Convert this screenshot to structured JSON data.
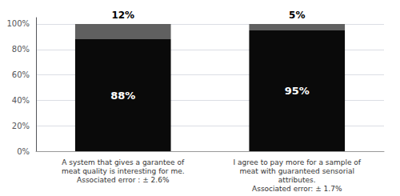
{
  "chart_data": {
    "type": "bar",
    "stacked": true,
    "data_labels": true,
    "grid": true,
    "categories": [
      "A system that gives a garantee of\nmeat quality is interesting for me.\nAssociated error : ± 2.6%",
      "I agree to pay more for a sample of\nmeat with guaranteed sensorial\nattributes.\nAssociated error: ± 1.7%"
    ],
    "series": [
      {
        "color": "#0a0a0a",
        "values": [
          88,
          95
        ],
        "value_labels": [
          "88%",
          "95%"
        ]
      },
      {
        "color": "#606060",
        "values": [
          12,
          5
        ],
        "value_labels": [
          "12%",
          "5%"
        ]
      }
    ],
    "ylim": [
      0,
      105
    ],
    "yticks": [
      {
        "value": 0,
        "label": "0%"
      },
      {
        "value": 20,
        "label": "20%"
      },
      {
        "value": 40,
        "label": "40%"
      },
      {
        "value": 60,
        "label": "60%"
      },
      {
        "value": 80,
        "label": "80%"
      },
      {
        "value": 100,
        "label": "100%"
      }
    ]
  }
}
